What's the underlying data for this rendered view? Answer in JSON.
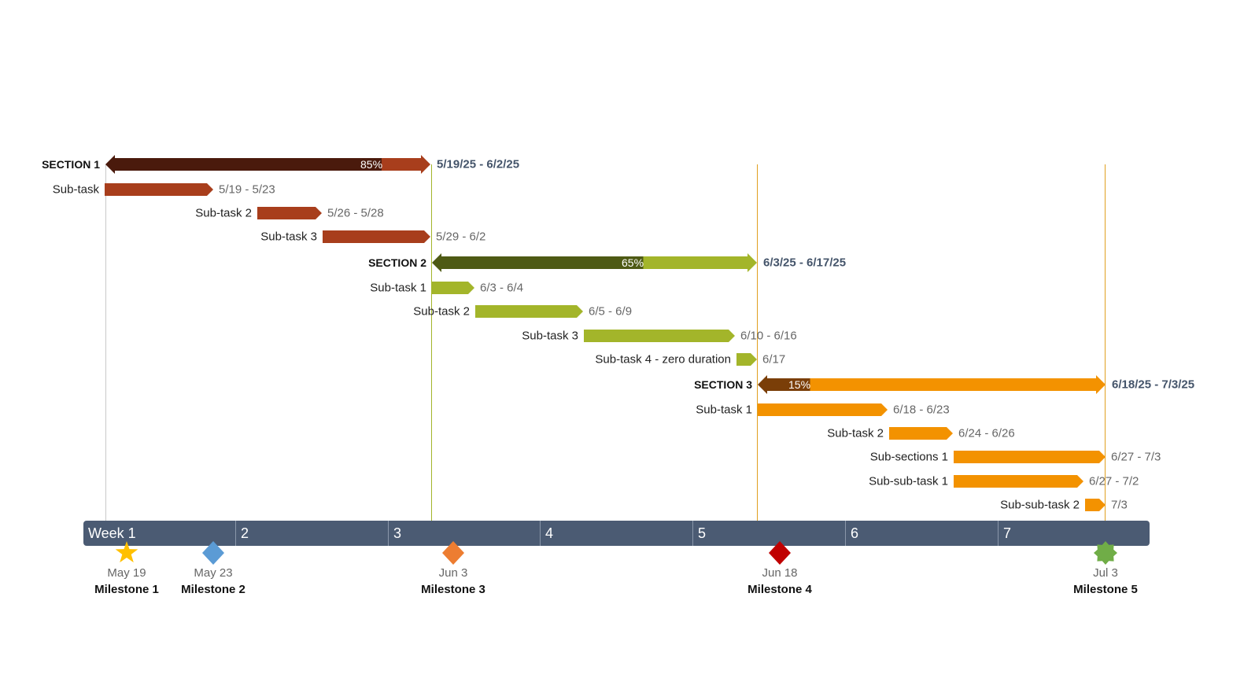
{
  "chart_data": {
    "type": "gantt",
    "sections": [
      {
        "name": "SECTION 1",
        "range": "5/19/25 - 6/2/25",
        "percent": "85%",
        "color": "#a83e1c",
        "dark": "#4a1a0c",
        "tasks": [
          {
            "name": "Sub-task",
            "range": "5/19 - 5/23"
          },
          {
            "name": "Sub-task 2",
            "range": "5/26 - 5/28"
          },
          {
            "name": "Sub-task 3",
            "range": "5/29 - 6/2"
          }
        ]
      },
      {
        "name": "SECTION 2",
        "range": "6/3/25 - 6/17/25",
        "percent": "65%",
        "color": "#a3b52a",
        "dark": "#4e5a14",
        "tasks": [
          {
            "name": "Sub-task 1",
            "range": "6/3 - 6/4"
          },
          {
            "name": "Sub-task 2",
            "range": "6/5 - 6/9"
          },
          {
            "name": "Sub-task 3",
            "range": "6/10 - 6/16"
          },
          {
            "name": "Sub-task 4 - zero duration",
            "range": "6/17"
          }
        ]
      },
      {
        "name": "SECTION 3",
        "range": "6/18/25 - 7/3/25",
        "percent": "15%",
        "color": "#f39200",
        "dark": "#7a3e08",
        "tasks": [
          {
            "name": "Sub-task 1",
            "range": "6/18 - 6/23"
          },
          {
            "name": "Sub-task 2",
            "range": "6/24 - 6/26"
          },
          {
            "name": "Sub-sections 1",
            "range": "6/27 - 7/3"
          },
          {
            "name": "Sub-sub-task 1",
            "range": "6/27 - 7/2"
          },
          {
            "name": "Sub-sub-task 2",
            "range": "7/3"
          }
        ]
      }
    ],
    "weeks": [
      "Week 1",
      "2",
      "3",
      "4",
      "5",
      "6",
      "7"
    ],
    "milestones": [
      {
        "name": "Milestone 1",
        "date": "May 19",
        "shape": "star",
        "color": "#ffc000"
      },
      {
        "name": "Milestone 2",
        "date": "May 23",
        "shape": "diamond",
        "color": "#5b9bd5"
      },
      {
        "name": "Milestone 3",
        "date": "Jun 3",
        "shape": "diamond",
        "color": "#ed7d31"
      },
      {
        "name": "Milestone 4",
        "date": "Jun 18",
        "shape": "diamond",
        "color": "#c00000"
      },
      {
        "name": "Milestone 5",
        "date": "Jul 3",
        "shape": "burst",
        "color": "#70ad47"
      }
    ]
  }
}
